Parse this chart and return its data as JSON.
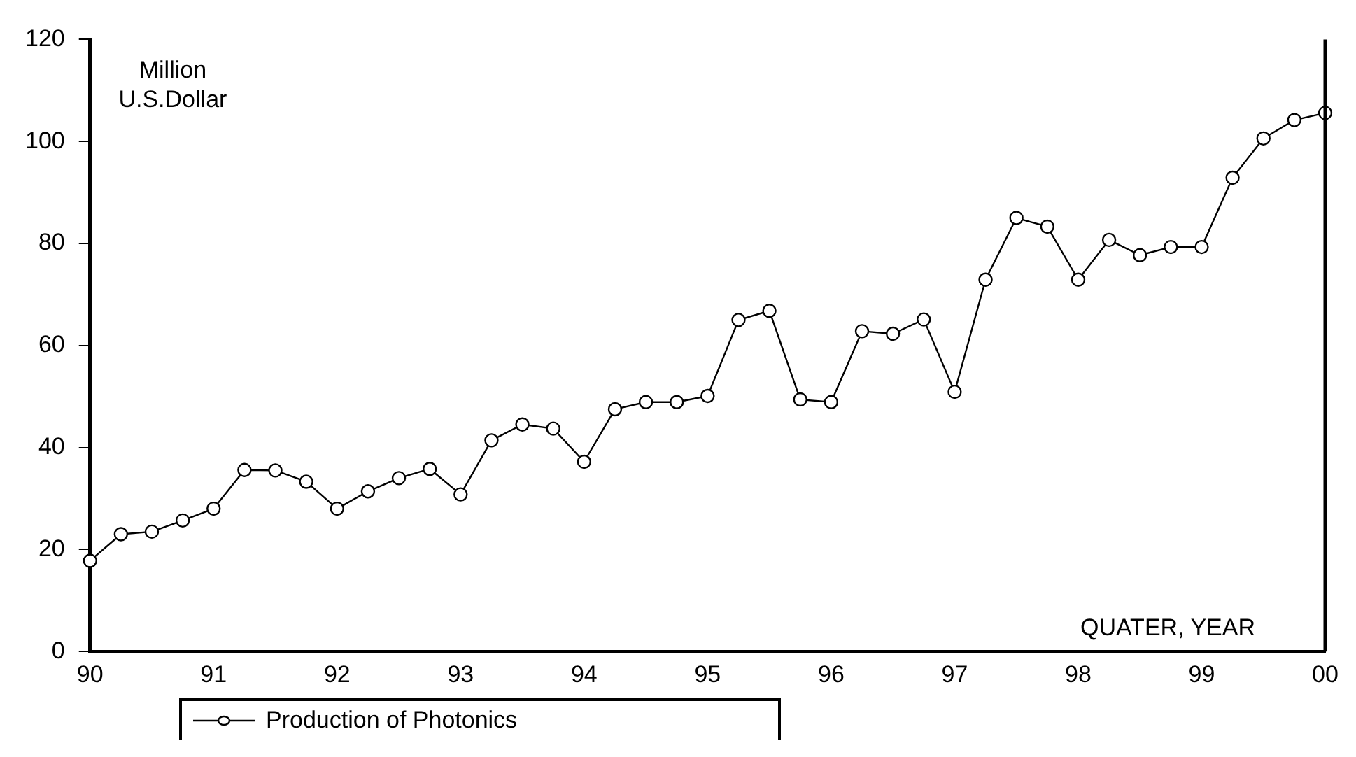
{
  "chart_data": {
    "type": "line",
    "ylabel": "Million U.S.Dollar",
    "xlabel": "QUATER, YEAR",
    "categories": [
      "90",
      null,
      null,
      null,
      "91",
      null,
      null,
      null,
      "92",
      null,
      null,
      null,
      "93",
      null,
      null,
      null,
      "94",
      null,
      null,
      null,
      "95",
      null,
      null,
      null,
      "96",
      null,
      null,
      null,
      "97",
      null,
      null,
      null,
      "98",
      null,
      null,
      null,
      "99",
      null,
      null,
      null,
      "00"
    ],
    "series": [
      {
        "name": "Production of Photonics",
        "color": "#000000",
        "values": [
          17.8,
          23,
          23.5,
          25.7,
          28,
          35.6,
          35.5,
          33.3,
          28,
          31.4,
          34,
          35.8,
          30.8,
          41.4,
          44.5,
          43.7,
          37.2,
          47.5,
          48.9,
          48.9,
          50.1,
          65,
          66.8,
          49.4,
          48.9,
          62.8,
          62.3,
          65.1,
          50.9,
          72.9,
          85,
          83.3,
          72.9,
          80.7,
          77.7,
          79.3,
          79.3,
          92.9,
          100.6,
          104.2,
          105.6
        ]
      }
    ],
    "ylim": [
      0,
      120
    ],
    "yticks": [
      0,
      20,
      40,
      60,
      80,
      100,
      120
    ],
    "grid": false,
    "legend": "bottom",
    "marker": "circle",
    "line_style": "solid"
  }
}
